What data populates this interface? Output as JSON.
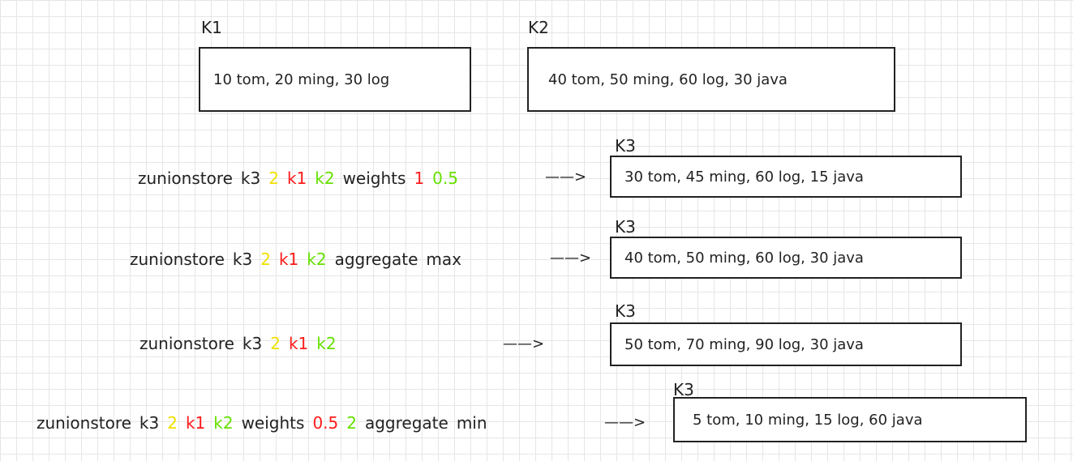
{
  "sources": [
    {
      "label": "K1",
      "content": "10 tom, 20 ming, 30 log"
    },
    {
      "label": "K2",
      "content": "40 tom, 50 ming, 60 log, 30 java"
    }
  ],
  "commands": [
    {
      "tokens": [
        {
          "text": "zunionstore",
          "color": "#222222"
        },
        {
          "text": "k3",
          "color": "#222222"
        },
        {
          "text": "2",
          "color": "#f0e000"
        },
        {
          "text": "k1",
          "color": "#ff1a1a"
        },
        {
          "text": "k2",
          "color": "#66e000"
        },
        {
          "text": "weights",
          "color": "#222222"
        },
        {
          "text": "1",
          "color": "#ff1a1a"
        },
        {
          "text": "0.5",
          "color": "#66e000"
        }
      ],
      "arrow": "——>",
      "result_label": "K3",
      "result": "30 tom, 45 ming, 60 log, 15 java"
    },
    {
      "tokens": [
        {
          "text": "zunionstore",
          "color": "#222222"
        },
        {
          "text": "k3",
          "color": "#222222"
        },
        {
          "text": "2",
          "color": "#f0e000"
        },
        {
          "text": "k1",
          "color": "#ff1a1a"
        },
        {
          "text": "k2",
          "color": "#66e000"
        },
        {
          "text": "aggregate",
          "color": "#222222"
        },
        {
          "text": "max",
          "color": "#222222"
        }
      ],
      "arrow": "——>",
      "result_label": "K3",
      "result": "40 tom, 50 ming, 60 log, 30 java"
    },
    {
      "tokens": [
        {
          "text": "zunionstore",
          "color": "#222222"
        },
        {
          "text": "k3",
          "color": "#222222"
        },
        {
          "text": "2",
          "color": "#f0e000"
        },
        {
          "text": "k1",
          "color": "#ff1a1a"
        },
        {
          "text": "k2",
          "color": "#66e000"
        }
      ],
      "arrow": "——>",
      "result_label": "K3",
      "result": "50 tom, 70 ming, 90 log, 30 java"
    },
    {
      "tokens": [
        {
          "text": "zunionstore",
          "color": "#222222"
        },
        {
          "text": "k3",
          "color": "#222222"
        },
        {
          "text": "2",
          "color": "#f0e000"
        },
        {
          "text": "k1",
          "color": "#ff1a1a"
        },
        {
          "text": "k2",
          "color": "#66e000"
        },
        {
          "text": "weights",
          "color": "#222222"
        },
        {
          "text": "0.5",
          "color": "#ff1a1a"
        },
        {
          "text": "2",
          "color": "#66e000"
        },
        {
          "text": "aggregate",
          "color": "#222222"
        },
        {
          "text": "min",
          "color": "#222222"
        }
      ],
      "arrow": "——>",
      "result_label": "K3",
      "result": "5 tom, 10 ming, 15 log, 60 java"
    }
  ]
}
